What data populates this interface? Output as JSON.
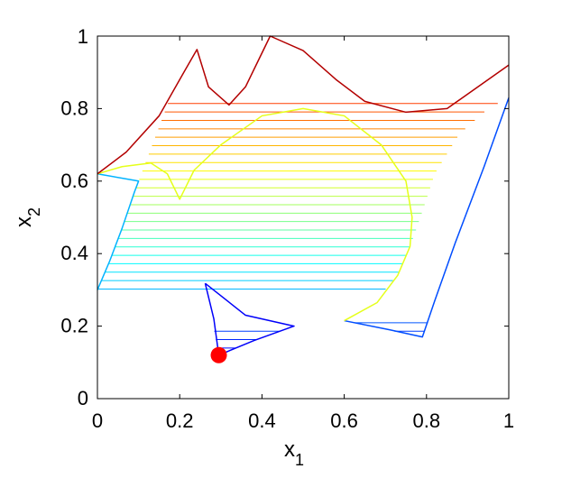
{
  "chart_data": {
    "type": "line",
    "title": "",
    "xlabel": "x",
    "xlabel_sub": "1",
    "ylabel": "x",
    "ylabel_sub": "2",
    "xlim": [
      0,
      1
    ],
    "ylim": [
      0,
      1
    ],
    "grid": false,
    "x_ticks": [
      0,
      0.2,
      0.4,
      0.6,
      0.8,
      1
    ],
    "x_tick_labels": [
      "0",
      "0.2",
      "0.4",
      "0.6",
      "0.8",
      "1"
    ],
    "y_ticks": [
      0,
      0.2,
      0.4,
      0.6,
      0.8,
      1
    ],
    "y_tick_labels": [
      "0",
      "0.2",
      "0.4",
      "0.6",
      "0.8",
      "1"
    ],
    "colormap": "jet",
    "hatch_levels": 43,
    "bands": [
      {
        "name": "",
        "left": [
          [
            0.295,
            0.12
          ],
          [
            0.262,
            0.318
          ]
        ],
        "right": [
          [
            0.295,
            0.12
          ],
          [
            0.38,
            0.16
          ],
          [
            0.478,
            0.2
          ]
        ],
        "y_range": [
          0.12,
          0.2
        ]
      },
      {
        "name": "",
        "left": [
          [
            0.6,
            0.215
          ],
          [
            0.79,
            0.17
          ]
        ],
        "right": [
          [
            0.79,
            0.17
          ],
          [
            0.835,
            0.3
          ],
          [
            0.88,
            0.46
          ],
          [
            0.94,
            0.64
          ],
          [
            1.0,
            0.83
          ]
        ],
        "y_range": [
          0.17,
          0.5
        ]
      },
      {
        "name": "",
        "left": [
          [
            0.0,
            0.3
          ],
          [
            0.03,
            0.38
          ],
          [
            0.06,
            0.47
          ],
          [
            0.1,
            0.6
          ],
          [
            0.2,
            0.9
          ],
          [
            0.242,
            0.963
          ]
        ],
        "right": [
          [
            0.6,
            0.215
          ],
          [
            0.66,
            0.25
          ],
          [
            0.73,
            0.34
          ],
          [
            0.77,
            0.45
          ],
          [
            0.8,
            0.55
          ],
          [
            0.82,
            0.62
          ],
          [
            0.88,
            0.73
          ],
          [
            0.95,
            0.8
          ],
          [
            1.0,
            0.83
          ]
        ],
        "y_range": [
          0.3,
          0.83
        ]
      }
    ],
    "boundaries": [
      {
        "color_value": 0.12,
        "points": [
          [
            0.262,
            0.318
          ],
          [
            0.283,
            0.22
          ],
          [
            0.295,
            0.12
          ],
          [
            0.38,
            0.16
          ],
          [
            0.478,
            0.2
          ],
          [
            0.36,
            0.23
          ],
          [
            0.262,
            0.318
          ]
        ]
      },
      {
        "color_value": 0.2,
        "points": [
          [
            0.6,
            0.215
          ],
          [
            0.71,
            0.19
          ],
          [
            0.79,
            0.17
          ],
          [
            0.82,
            0.27
          ],
          [
            0.87,
            0.43
          ],
          [
            0.94,
            0.64
          ],
          [
            1.0,
            0.83
          ]
        ]
      },
      {
        "color_value": 0.3,
        "points": [
          [
            0.0,
            0.3
          ],
          [
            0.03,
            0.38
          ],
          [
            0.06,
            0.47
          ],
          [
            0.09,
            0.57
          ],
          [
            0.1,
            0.6
          ],
          [
            0.0,
            0.62
          ]
        ]
      },
      {
        "color_value": 0.6,
        "points": [
          [
            0.0,
            0.62
          ],
          [
            0.06,
            0.64
          ],
          [
            0.13,
            0.65
          ],
          [
            0.17,
            0.62
          ],
          [
            0.2,
            0.55
          ],
          [
            0.235,
            0.63
          ],
          [
            0.3,
            0.7
          ],
          [
            0.4,
            0.78
          ],
          [
            0.5,
            0.8
          ],
          [
            0.6,
            0.78
          ],
          [
            0.69,
            0.7
          ],
          [
            0.75,
            0.6
          ],
          [
            0.765,
            0.5
          ],
          [
            0.76,
            0.42
          ],
          [
            0.73,
            0.34
          ],
          [
            0.68,
            0.265
          ],
          [
            0.6,
            0.215
          ]
        ]
      },
      {
        "color_value": 0.95,
        "points": [
          [
            0.0,
            0.62
          ],
          [
            0.07,
            0.68
          ],
          [
            0.15,
            0.78
          ],
          [
            0.21,
            0.9
          ],
          [
            0.242,
            0.963
          ],
          [
            0.27,
            0.86
          ],
          [
            0.32,
            0.81
          ],
          [
            0.36,
            0.86
          ],
          [
            0.39,
            0.93
          ],
          [
            0.42,
            1.0
          ],
          [
            0.5,
            0.96
          ],
          [
            0.58,
            0.88
          ],
          [
            0.65,
            0.82
          ],
          [
            0.75,
            0.79
          ],
          [
            0.85,
            0.8
          ],
          [
            1.0,
            0.92
          ]
        ]
      }
    ],
    "start_point": {
      "x": 0.295,
      "y": 0.12,
      "color": "#ff0000"
    },
    "colors": {
      "background": "#ffffff",
      "axes": "#000000",
      "start_point": "#ff0000"
    }
  }
}
